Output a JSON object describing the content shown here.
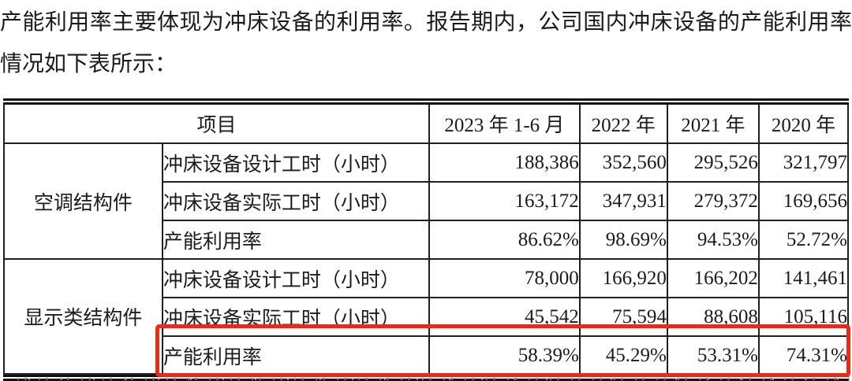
{
  "page": {
    "background": "#ffffff",
    "text_color": "#1b1b1b",
    "annotation_red": "#ef2715"
  },
  "paragraph": {
    "line1": "产能利用率主要体现为冲床设备的利用率。报告期内，公司国内冲床设备的产能利用率",
    "line2": "情况如下表所示："
  },
  "table": {
    "header": {
      "item_label": "项目",
      "periods": [
        "2023 年 1-6 月",
        "2022 年",
        "2021 年",
        "2020 年"
      ]
    },
    "groups": [
      {
        "name": "空调结构件",
        "rows": [
          {
            "label": "冲床设备设计工时（小时）",
            "values": [
              "188,386",
              "352,560",
              "295,526",
              "321,797"
            ]
          },
          {
            "label": "冲床设备实际工时（小时）",
            "values": [
              "163,172",
              "347,931",
              "279,372",
              "169,656"
            ]
          },
          {
            "label": "产能利用率",
            "values": [
              "86.62%",
              "98.69%",
              "94.53%",
              "52.72%"
            ]
          }
        ]
      },
      {
        "name": "显示类结构件",
        "rows": [
          {
            "label": "冲床设备设计工时（小时）",
            "values": [
              "78,000",
              "166,920",
              "166,202",
              "141,461"
            ]
          },
          {
            "label": "冲床设备实际工时（小时）",
            "values": [
              "45,542",
              "75,594",
              "88,608",
              "105,116"
            ]
          },
          {
            "label": "产能利用率",
            "values": [
              "58.39%",
              "45.29%",
              "53.31%",
              "74.31%"
            ],
            "highlighted": true
          }
        ]
      }
    ],
    "annotation": {
      "type": "red-highlight-box",
      "target": "显示类结构件 产能利用率 行",
      "color": "#ef2715"
    }
  }
}
